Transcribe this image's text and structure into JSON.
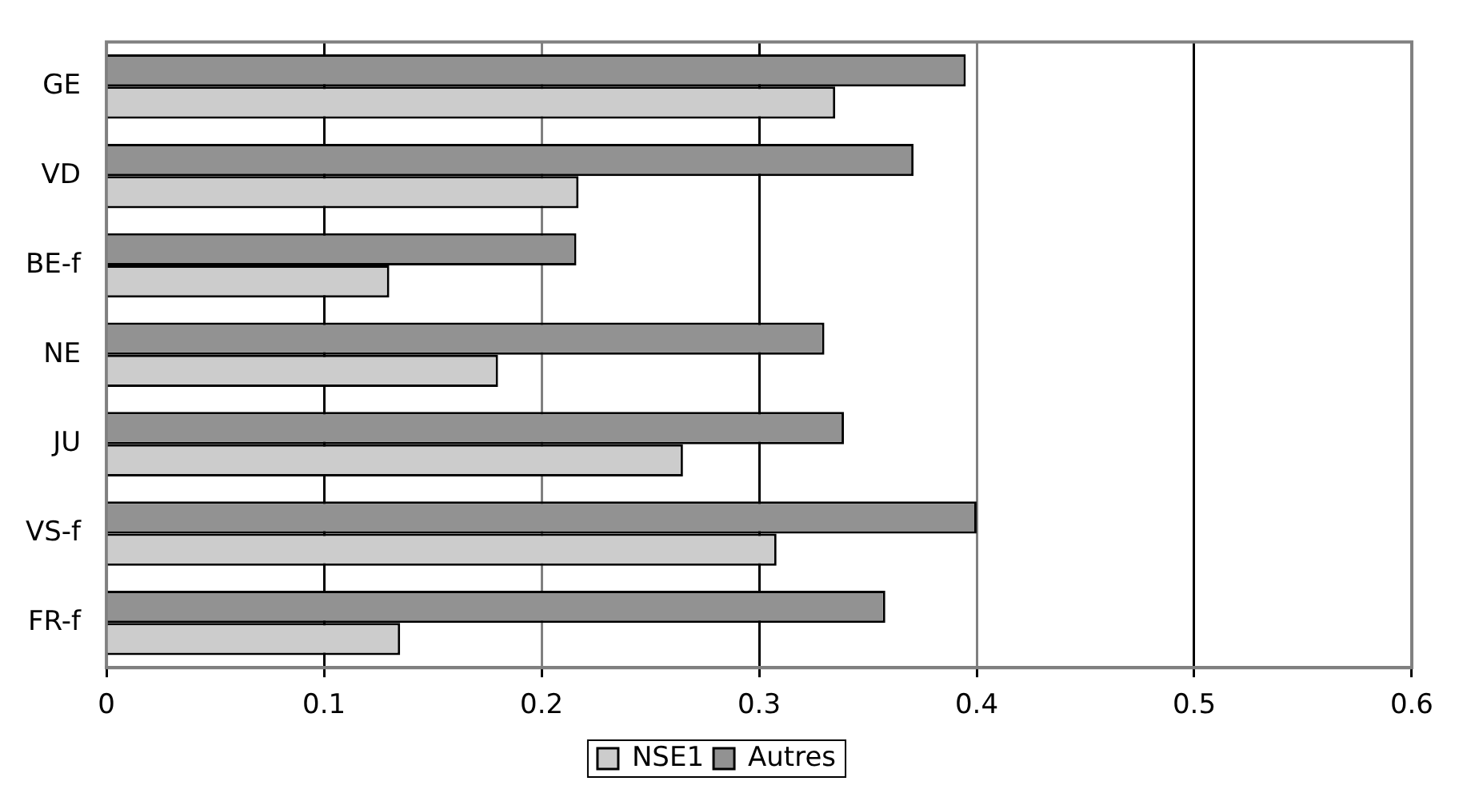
{
  "chart_data": {
    "type": "bar",
    "orientation": "horizontal",
    "categories": [
      "GE",
      "VD",
      "BE-f",
      "NE",
      "JU",
      "VS-f",
      "FR-f"
    ],
    "series": [
      {
        "name": "NSE1",
        "color": "#cccccc",
        "values": [
          0.335,
          0.217,
          0.13,
          0.18,
          0.265,
          0.308,
          0.135
        ]
      },
      {
        "name": "Autres",
        "color": "#929292",
        "values": [
          0.395,
          0.371,
          0.216,
          0.33,
          0.339,
          0.4,
          0.358
        ]
      }
    ],
    "xlim": [
      0,
      0.6
    ],
    "xticks": [
      0,
      0.1,
      0.2,
      0.3,
      0.4,
      0.5,
      0.6
    ],
    "grid": "x",
    "legend": "bottom"
  }
}
